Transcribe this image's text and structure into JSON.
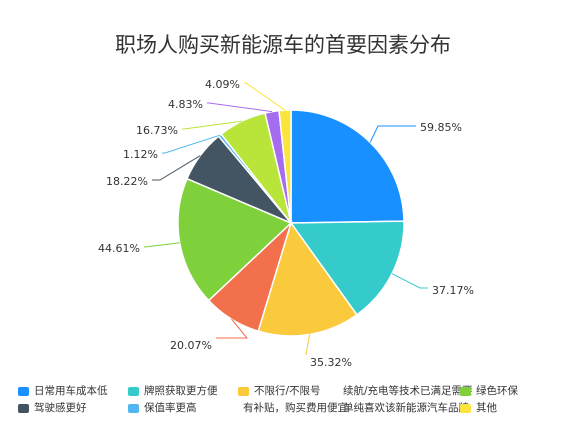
{
  "chart_data": {
    "type": "pie",
    "title": "职场人购买新能源车的首要因素分布",
    "categories": [
      "日常用车成本低",
      "牌照获取更方便",
      "不限行/不限号",
      "续航/充电等技术已满足需要",
      "绿色环保",
      "驾驶感更好",
      "保值率更高",
      "有补贴，购买费用便宜",
      "单纯喜欢该新能源汽车品牌",
      "其他"
    ],
    "values": [
      59.85,
      37.17,
      35.32,
      20.07,
      44.61,
      18.22,
      1.12,
      16.73,
      4.83,
      4.09
    ],
    "labels": [
      "59.85%",
      "37.17%",
      "35.32%",
      "20.07%",
      "44.61%",
      "18.22%",
      "1.12%",
      "16.73%",
      "4.83%",
      "4.09%"
    ],
    "colors": [
      "#1890ff",
      "#36cbcb",
      "#fbc93c",
      "#f2704b",
      "#7fd13b",
      "#435563",
      "#52b6f0",
      "#b9e43a",
      "#a66cf0",
      "#fbe53c"
    ],
    "legend_position": "bottom"
  }
}
